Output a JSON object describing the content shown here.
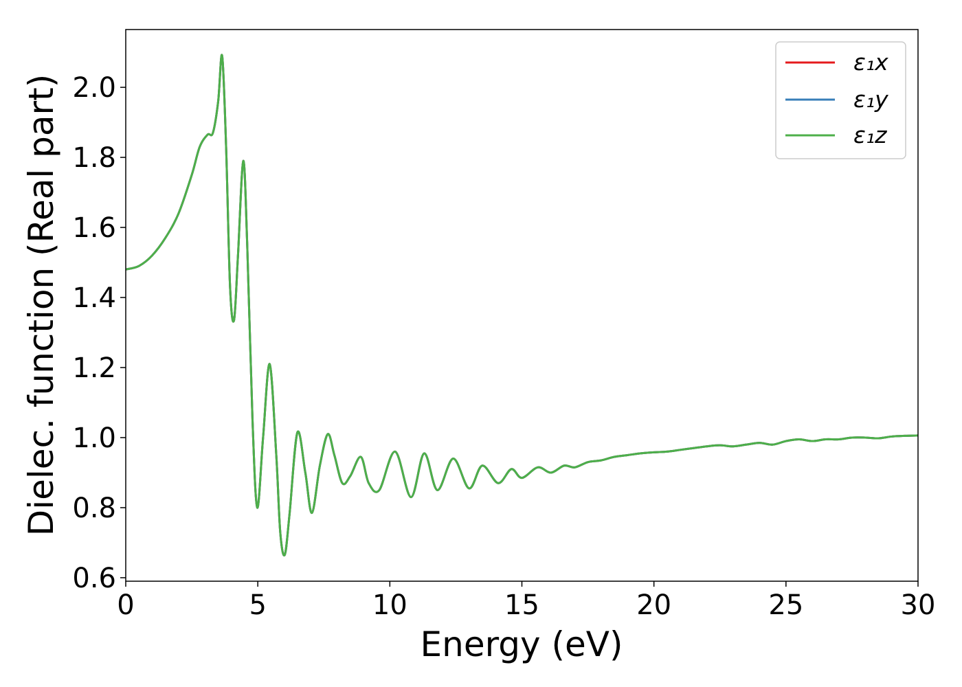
{
  "chart_data": {
    "type": "line",
    "xlabel": "Energy (eV)",
    "ylabel": "Dielec. function (Real part)",
    "xlim": [
      0,
      30
    ],
    "ylim": [
      0.59,
      2.165
    ],
    "xticks": [
      "0",
      "5",
      "10",
      "15",
      "20",
      "25",
      "30"
    ],
    "yticks": [
      "0.6",
      "0.8",
      "1.0",
      "1.2",
      "1.4",
      "1.6",
      "1.8",
      "2.0"
    ],
    "grid": false,
    "legend_position": "top-right",
    "series": [
      {
        "name": "ε₁x",
        "color": "#e41a1c",
        "x": [
          0,
          0.5,
          1.0,
          1.5,
          2.0,
          2.5,
          2.8,
          3.1,
          3.3,
          3.5,
          3.65,
          3.8,
          3.95,
          4.1,
          4.25,
          4.45,
          4.6,
          4.8,
          4.98,
          5.2,
          5.45,
          5.7,
          5.85,
          6.02,
          6.2,
          6.5,
          6.8,
          7.05,
          7.35,
          7.65,
          7.9,
          8.2,
          8.5,
          8.9,
          9.2,
          9.6,
          10.2,
          10.8,
          11.3,
          11.8,
          12.4,
          13.0,
          13.5,
          14.1,
          14.6,
          15.0,
          15.6,
          16.1,
          16.6,
          17.0,
          17.5,
          18.0,
          18.5,
          19.0,
          19.5,
          20.0,
          20.5,
          21.0,
          21.5,
          22.0,
          22.5,
          23.0,
          23.5,
          24.0,
          24.5,
          25.0,
          25.5,
          26.0,
          26.5,
          27.0,
          27.5,
          28.0,
          28.5,
          29.0,
          29.5,
          30.0
        ],
        "y": [
          1.48,
          1.49,
          1.52,
          1.57,
          1.64,
          1.75,
          1.83,
          1.865,
          1.87,
          1.96,
          2.09,
          1.83,
          1.43,
          1.335,
          1.52,
          1.79,
          1.55,
          1.05,
          0.8,
          1.0,
          1.21,
          0.95,
          0.73,
          0.665,
          0.78,
          1.015,
          0.9,
          0.785,
          0.92,
          1.01,
          0.95,
          0.87,
          0.89,
          0.945,
          0.87,
          0.85,
          0.96,
          0.83,
          0.955,
          0.85,
          0.94,
          0.855,
          0.92,
          0.87,
          0.91,
          0.885,
          0.915,
          0.9,
          0.92,
          0.915,
          0.93,
          0.935,
          0.945,
          0.95,
          0.955,
          0.958,
          0.96,
          0.965,
          0.97,
          0.975,
          0.978,
          0.975,
          0.98,
          0.985,
          0.98,
          0.99,
          0.995,
          0.99,
          0.995,
          0.995,
          1.0,
          1.0,
          0.998,
          1.003,
          1.005,
          1.006
        ]
      },
      {
        "name": "ε₁y",
        "color": "#377eb8",
        "x": [
          0,
          0.5,
          1.0,
          1.5,
          2.0,
          2.5,
          2.8,
          3.1,
          3.3,
          3.5,
          3.65,
          3.8,
          3.95,
          4.1,
          4.25,
          4.45,
          4.6,
          4.8,
          4.98,
          5.2,
          5.45,
          5.7,
          5.85,
          6.02,
          6.2,
          6.5,
          6.8,
          7.05,
          7.35,
          7.65,
          7.9,
          8.2,
          8.5,
          8.9,
          9.2,
          9.6,
          10.2,
          10.8,
          11.3,
          11.8,
          12.4,
          13.0,
          13.5,
          14.1,
          14.6,
          15.0,
          15.6,
          16.1,
          16.6,
          17.0,
          17.5,
          18.0,
          18.5,
          19.0,
          19.5,
          20.0,
          20.5,
          21.0,
          21.5,
          22.0,
          22.5,
          23.0,
          23.5,
          24.0,
          24.5,
          25.0,
          25.5,
          26.0,
          26.5,
          27.0,
          27.5,
          28.0,
          28.5,
          29.0,
          29.5,
          30.0
        ],
        "y": [
          1.48,
          1.49,
          1.52,
          1.57,
          1.64,
          1.75,
          1.83,
          1.865,
          1.87,
          1.96,
          2.09,
          1.83,
          1.43,
          1.335,
          1.52,
          1.79,
          1.55,
          1.05,
          0.8,
          1.0,
          1.21,
          0.95,
          0.73,
          0.665,
          0.78,
          1.015,
          0.9,
          0.785,
          0.92,
          1.01,
          0.95,
          0.87,
          0.89,
          0.945,
          0.87,
          0.85,
          0.96,
          0.83,
          0.955,
          0.85,
          0.94,
          0.855,
          0.92,
          0.87,
          0.91,
          0.885,
          0.915,
          0.9,
          0.92,
          0.915,
          0.93,
          0.935,
          0.945,
          0.95,
          0.955,
          0.958,
          0.96,
          0.965,
          0.97,
          0.975,
          0.978,
          0.975,
          0.98,
          0.985,
          0.98,
          0.99,
          0.995,
          0.99,
          0.995,
          0.995,
          1.0,
          1.0,
          0.998,
          1.003,
          1.005,
          1.006
        ]
      },
      {
        "name": "ε₁z",
        "color": "#4daf4a",
        "x": [
          0,
          0.5,
          1.0,
          1.5,
          2.0,
          2.5,
          2.8,
          3.1,
          3.3,
          3.5,
          3.65,
          3.8,
          3.95,
          4.1,
          4.25,
          4.45,
          4.6,
          4.8,
          4.98,
          5.2,
          5.45,
          5.7,
          5.85,
          6.02,
          6.2,
          6.5,
          6.8,
          7.05,
          7.35,
          7.65,
          7.9,
          8.2,
          8.5,
          8.9,
          9.2,
          9.6,
          10.2,
          10.8,
          11.3,
          11.8,
          12.4,
          13.0,
          13.5,
          14.1,
          14.6,
          15.0,
          15.6,
          16.1,
          16.6,
          17.0,
          17.5,
          18.0,
          18.5,
          19.0,
          19.5,
          20.0,
          20.5,
          21.0,
          21.5,
          22.0,
          22.5,
          23.0,
          23.5,
          24.0,
          24.5,
          25.0,
          25.5,
          26.0,
          26.5,
          27.0,
          27.5,
          28.0,
          28.5,
          29.0,
          29.5,
          30.0
        ],
        "y": [
          1.48,
          1.49,
          1.52,
          1.57,
          1.64,
          1.75,
          1.83,
          1.865,
          1.87,
          1.96,
          2.09,
          1.83,
          1.43,
          1.335,
          1.52,
          1.79,
          1.55,
          1.05,
          0.8,
          1.0,
          1.21,
          0.95,
          0.73,
          0.665,
          0.78,
          1.015,
          0.9,
          0.785,
          0.92,
          1.01,
          0.95,
          0.87,
          0.89,
          0.945,
          0.87,
          0.85,
          0.96,
          0.83,
          0.955,
          0.85,
          0.94,
          0.855,
          0.92,
          0.87,
          0.91,
          0.885,
          0.915,
          0.9,
          0.92,
          0.915,
          0.93,
          0.935,
          0.945,
          0.95,
          0.955,
          0.958,
          0.96,
          0.965,
          0.97,
          0.975,
          0.978,
          0.975,
          0.98,
          0.985,
          0.98,
          0.99,
          0.995,
          0.99,
          0.995,
          0.995,
          1.0,
          1.0,
          0.998,
          1.003,
          1.005,
          1.006
        ]
      }
    ]
  }
}
